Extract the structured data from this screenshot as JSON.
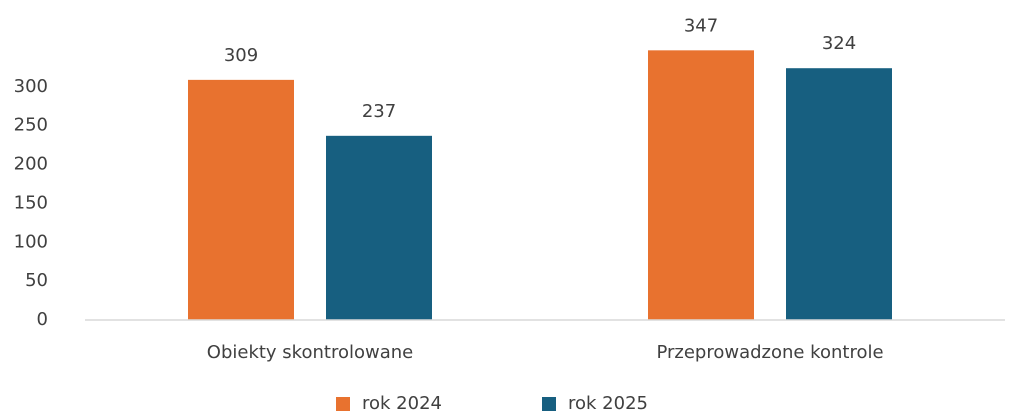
{
  "chart_data": {
    "type": "bar",
    "categories": [
      "Obiekty skontrolowane",
      "Przeprowadzone kontrole"
    ],
    "series": [
      {
        "name": "rok 2024",
        "color": "#e8722f",
        "values": [
          309,
          347
        ]
      },
      {
        "name": "rok 2025",
        "color": "#175f80",
        "values": [
          237,
          324
        ]
      }
    ],
    "ylim": [
      0,
      350
    ],
    "yticks": [
      0,
      50,
      100,
      150,
      200,
      250,
      300
    ],
    "grid": false,
    "legend": "bottom"
  }
}
